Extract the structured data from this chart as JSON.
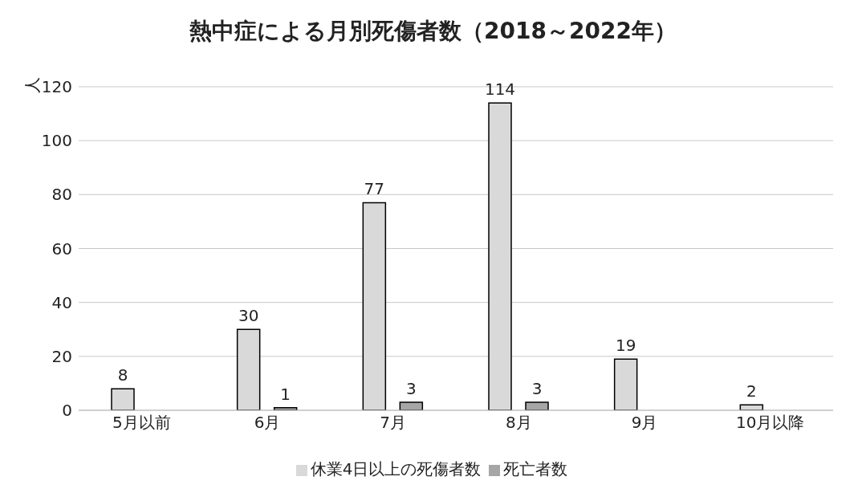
{
  "chart_data": {
    "type": "bar",
    "title": "熱中症による月別死傷者数（2018～2022年）",
    "ylabel": "人",
    "categories": [
      "5月以前",
      "6月",
      "7月",
      "8月",
      "9月",
      "10月以降"
    ],
    "series": [
      {
        "name": "休業4日以上の死傷者数",
        "color": "#d9d9d9",
        "values": [
          8,
          30,
          77,
          114,
          19,
          2
        ]
      },
      {
        "name": "死亡者数",
        "color": "#a6a6a6",
        "values": [
          null,
          1,
          3,
          3,
          null,
          null
        ]
      }
    ],
    "ylim": [
      0,
      120
    ],
    "yticks": [
      0,
      20,
      40,
      60,
      80,
      100,
      120
    ],
    "grid": "y",
    "legend": "bottom",
    "data_labels": true
  }
}
